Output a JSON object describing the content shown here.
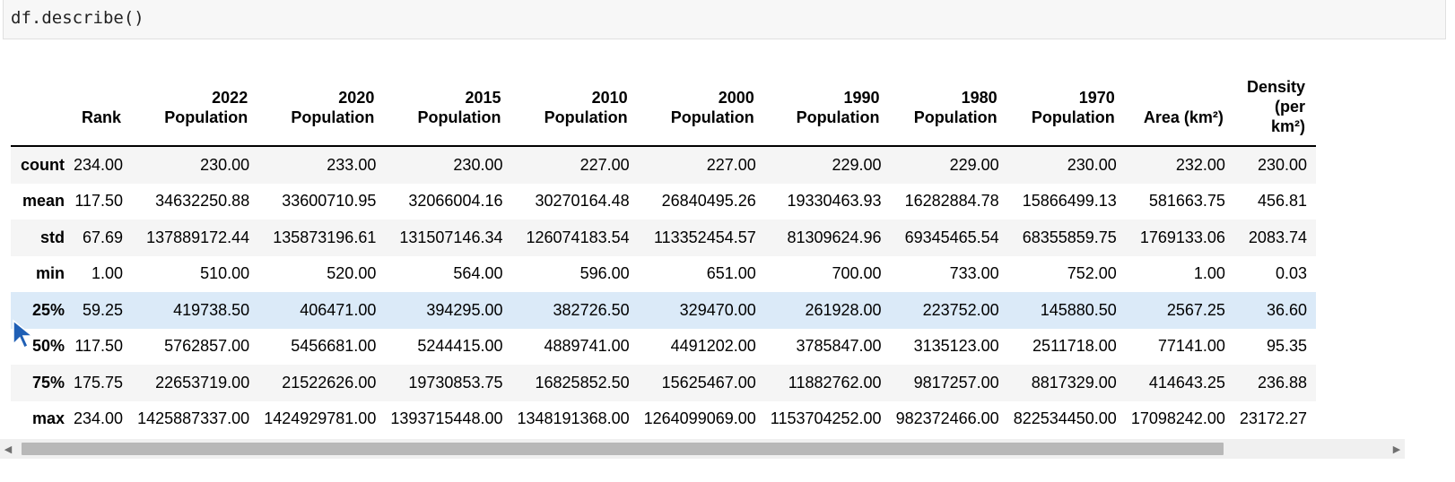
{
  "input": {
    "code": "df.describe()"
  },
  "table": {
    "columns": [
      {
        "l1": "",
        "l2": "Rank"
      },
      {
        "l1": "2022",
        "l2": "Population"
      },
      {
        "l1": "2020",
        "l2": "Population"
      },
      {
        "l1": "2015",
        "l2": "Population"
      },
      {
        "l1": "2010",
        "l2": "Population"
      },
      {
        "l1": "2000",
        "l2": "Population"
      },
      {
        "l1": "1990",
        "l2": "Population"
      },
      {
        "l1": "1980",
        "l2": "Population"
      },
      {
        "l1": "1970",
        "l2": "Population"
      },
      {
        "l1": "",
        "l2": "Area (km²)"
      },
      {
        "l1": "Density",
        "l2": "(per",
        "l3": "km²)"
      }
    ],
    "rows": [
      {
        "label": "count",
        "cells": [
          "234.00",
          "230.00",
          "233.00",
          "230.00",
          "227.00",
          "227.00",
          "229.00",
          "229.00",
          "230.00",
          "232.00",
          "230.00"
        ]
      },
      {
        "label": "mean",
        "cells": [
          "117.50",
          "34632250.88",
          "33600710.95",
          "32066004.16",
          "30270164.48",
          "26840495.26",
          "19330463.93",
          "16282884.78",
          "15866499.13",
          "581663.75",
          "456.81"
        ]
      },
      {
        "label": "std",
        "cells": [
          "67.69",
          "137889172.44",
          "135873196.61",
          "131507146.34",
          "126074183.54",
          "113352454.57",
          "81309624.96",
          "69345465.54",
          "68355859.75",
          "1769133.06",
          "2083.74"
        ]
      },
      {
        "label": "min",
        "cells": [
          "1.00",
          "510.00",
          "520.00",
          "564.00",
          "596.00",
          "651.00",
          "700.00",
          "733.00",
          "752.00",
          "1.00",
          "0.03"
        ]
      },
      {
        "label": "25%",
        "cells": [
          "59.25",
          "419738.50",
          "406471.00",
          "394295.00",
          "382726.50",
          "329470.00",
          "261928.00",
          "223752.00",
          "145880.50",
          "2567.25",
          "36.60"
        ]
      },
      {
        "label": "50%",
        "cells": [
          "117.50",
          "5762857.00",
          "5456681.00",
          "5244415.00",
          "4889741.00",
          "4491202.00",
          "3785847.00",
          "3135123.00",
          "2511718.00",
          "77141.00",
          "95.35"
        ]
      },
      {
        "label": "75%",
        "cells": [
          "175.75",
          "22653719.00",
          "21522626.00",
          "19730853.75",
          "16825852.50",
          "15625467.00",
          "11882762.00",
          "9817257.00",
          "8817329.00",
          "414643.25",
          "236.88"
        ]
      },
      {
        "label": "max",
        "cells": [
          "234.00",
          "1425887337.00",
          "1424929781.00",
          "1393715448.00",
          "1348191368.00",
          "1264099069.00",
          "1153704252.00",
          "982372466.00",
          "822534450.00",
          "17098242.00",
          "23172.27"
        ]
      }
    ]
  },
  "scrollbar": {
    "left_icon": "arrow-left-icon",
    "right_icon": "arrow-right-icon"
  },
  "cursor": {
    "icon": "mouse-cursor-icon"
  }
}
